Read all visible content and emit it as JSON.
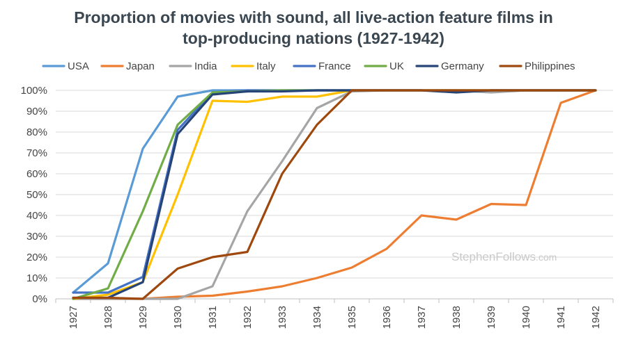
{
  "chart_data": {
    "type": "line",
    "title_line_1": "Proportion of movies with sound, all live-action feature films in",
    "title_line_2": "top-producing nations (1927-1942)",
    "xlabel": "",
    "ylabel": "",
    "ylim": [
      0,
      100
    ],
    "y_ticks": [
      "0%",
      "10%",
      "20%",
      "30%",
      "40%",
      "50%",
      "60%",
      "70%",
      "80%",
      "90%",
      "100%"
    ],
    "grid": true,
    "legend_position": "top",
    "categories": [
      "1927",
      "1928",
      "1929",
      "1930",
      "1931",
      "1932",
      "1933",
      "1934",
      "1935",
      "1936",
      "1937",
      "1938",
      "1939",
      "1940",
      "1941",
      "1942"
    ],
    "series": [
      {
        "name": "USA",
        "color": "#5b9bd5",
        "values": [
          3,
          17,
          72,
          97,
          100,
          100,
          100,
          100,
          100,
          100,
          100,
          100,
          100,
          100,
          100,
          100
        ]
      },
      {
        "name": "Japan",
        "color": "#ed7d31",
        "values": [
          0,
          0,
          0,
          1,
          1.5,
          3.5,
          6,
          10,
          15,
          24,
          40,
          38,
          45.5,
          45,
          94,
          100
        ]
      },
      {
        "name": "India",
        "color": "#a5a5a5",
        "values": [
          0,
          0,
          0,
          0,
          6,
          42,
          66,
          91.5,
          99.5,
          100,
          100,
          100,
          99,
          100,
          100,
          100
        ]
      },
      {
        "name": "Italy",
        "color": "#ffc000",
        "values": [
          0,
          2,
          8,
          50,
          95,
          94.5,
          97,
          97,
          100,
          100,
          100,
          100,
          100,
          100,
          100,
          100
        ]
      },
      {
        "name": "France",
        "color": "#4472c4",
        "values": [
          3,
          3,
          10.5,
          81,
          99,
          100,
          100,
          100,
          100,
          100,
          100,
          99.5,
          100,
          100,
          100,
          100
        ]
      },
      {
        "name": "UK",
        "color": "#70ad47",
        "values": [
          0,
          5,
          42,
          83.5,
          99,
          99.5,
          100,
          100,
          100,
          100,
          100,
          100,
          100,
          100,
          100,
          100
        ]
      },
      {
        "name": "Germany",
        "color": "#264478",
        "values": [
          0.5,
          0.5,
          8,
          79,
          98,
          99.5,
          99.5,
          100,
          100,
          100,
          100,
          99,
          100,
          100,
          100,
          100
        ]
      },
      {
        "name": "Philippines",
        "color": "#9e480e",
        "values": [
          0.5,
          0.5,
          0,
          14.5,
          20,
          22.5,
          60,
          83.5,
          100,
          100,
          100,
          100,
          100,
          100,
          100,
          100
        ]
      }
    ]
  },
  "watermark": {
    "main": "StephenFollows",
    "suffix": ".com"
  }
}
